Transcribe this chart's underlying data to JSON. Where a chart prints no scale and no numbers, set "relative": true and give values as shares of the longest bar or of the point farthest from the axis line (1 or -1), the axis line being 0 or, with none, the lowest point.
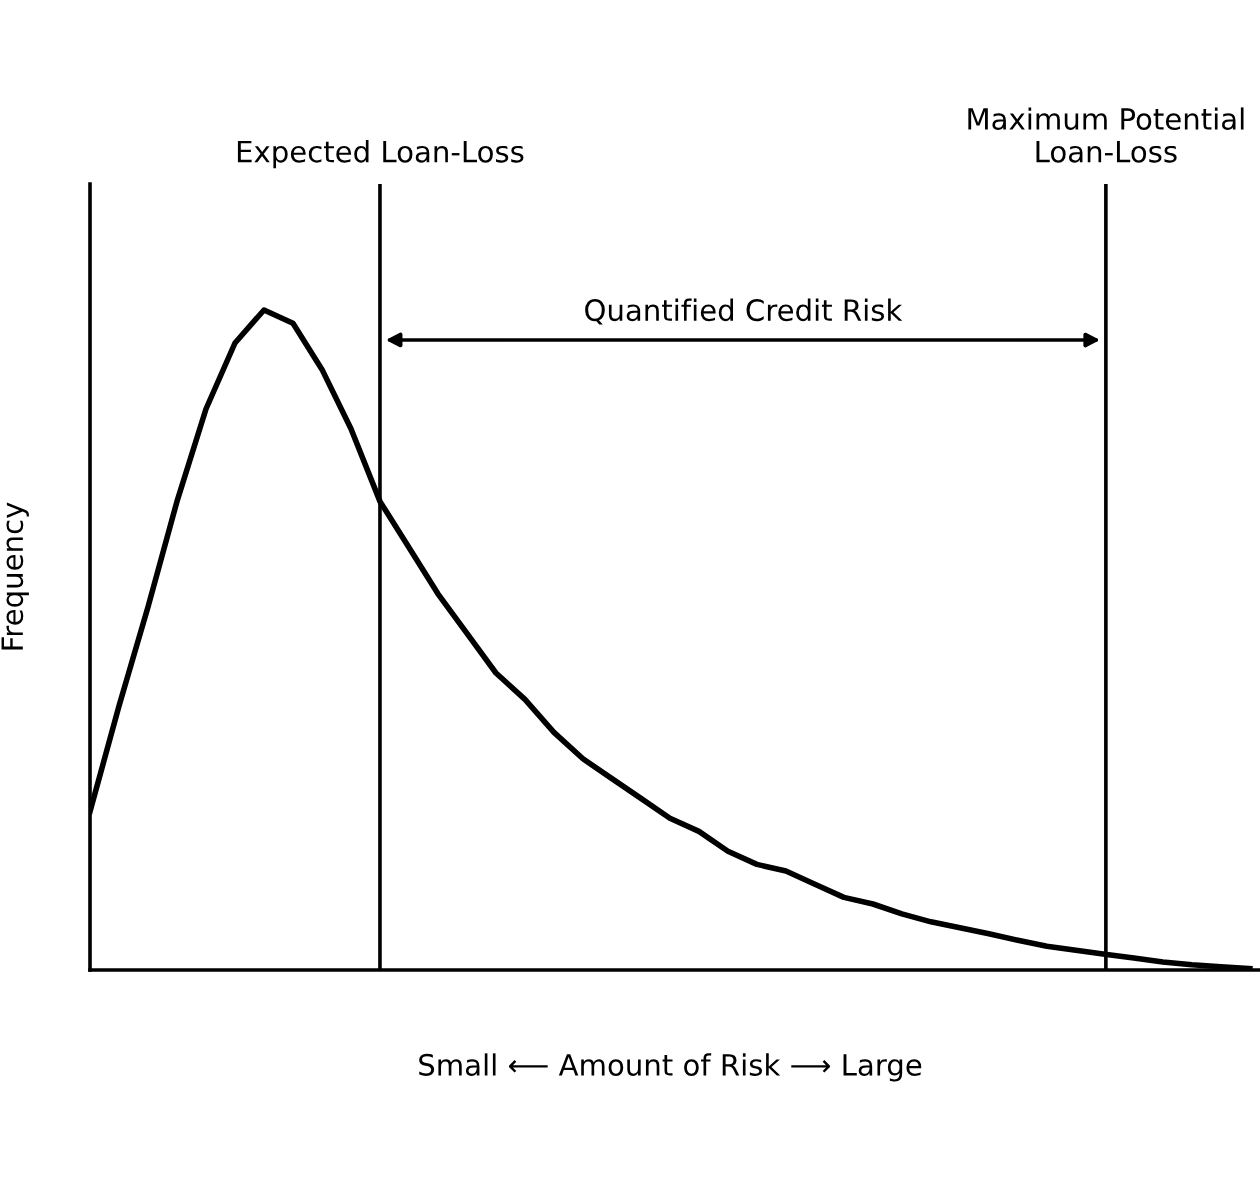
{
  "chart_data": {
    "type": "line",
    "relative": true,
    "xlabel": "Small ⟵ Amount of Risk ⟶ Large",
    "ylabel": "Frequency",
    "categories": [
      null,
      null,
      null,
      null,
      null,
      null,
      null,
      null,
      null,
      null,
      null,
      null,
      null,
      null,
      null,
      null,
      null,
      null,
      null,
      null,
      null,
      null,
      null,
      null,
      null,
      null,
      null,
      null,
      null,
      null,
      null,
      null,
      null,
      null,
      null,
      null,
      null,
      null,
      null,
      null,
      null
    ],
    "series": [
      {
        "color": "#000000",
        "values": [
          0.24,
          0.4,
          0.55,
          0.71,
          0.85,
          0.95,
          1.0,
          0.98,
          0.91,
          0.82,
          0.71,
          0.64,
          0.57,
          0.51,
          0.45,
          0.41,
          0.36,
          0.32,
          0.29,
          0.26,
          0.23,
          0.21,
          0.18,
          0.16,
          0.15,
          0.13,
          0.11,
          0.1,
          0.085,
          0.073,
          0.064,
          0.055,
          0.045,
          0.036,
          0.03,
          0.024,
          0.018,
          0.012,
          0.008,
          0.005,
          0.002
        ]
      }
    ],
    "annotations": [
      "Expected Loan-Loss",
      "Maximum Potential\nLoan-Loss",
      "Quantified Credit Risk"
    ],
    "marker": "none",
    "line_style": "solid"
  }
}
